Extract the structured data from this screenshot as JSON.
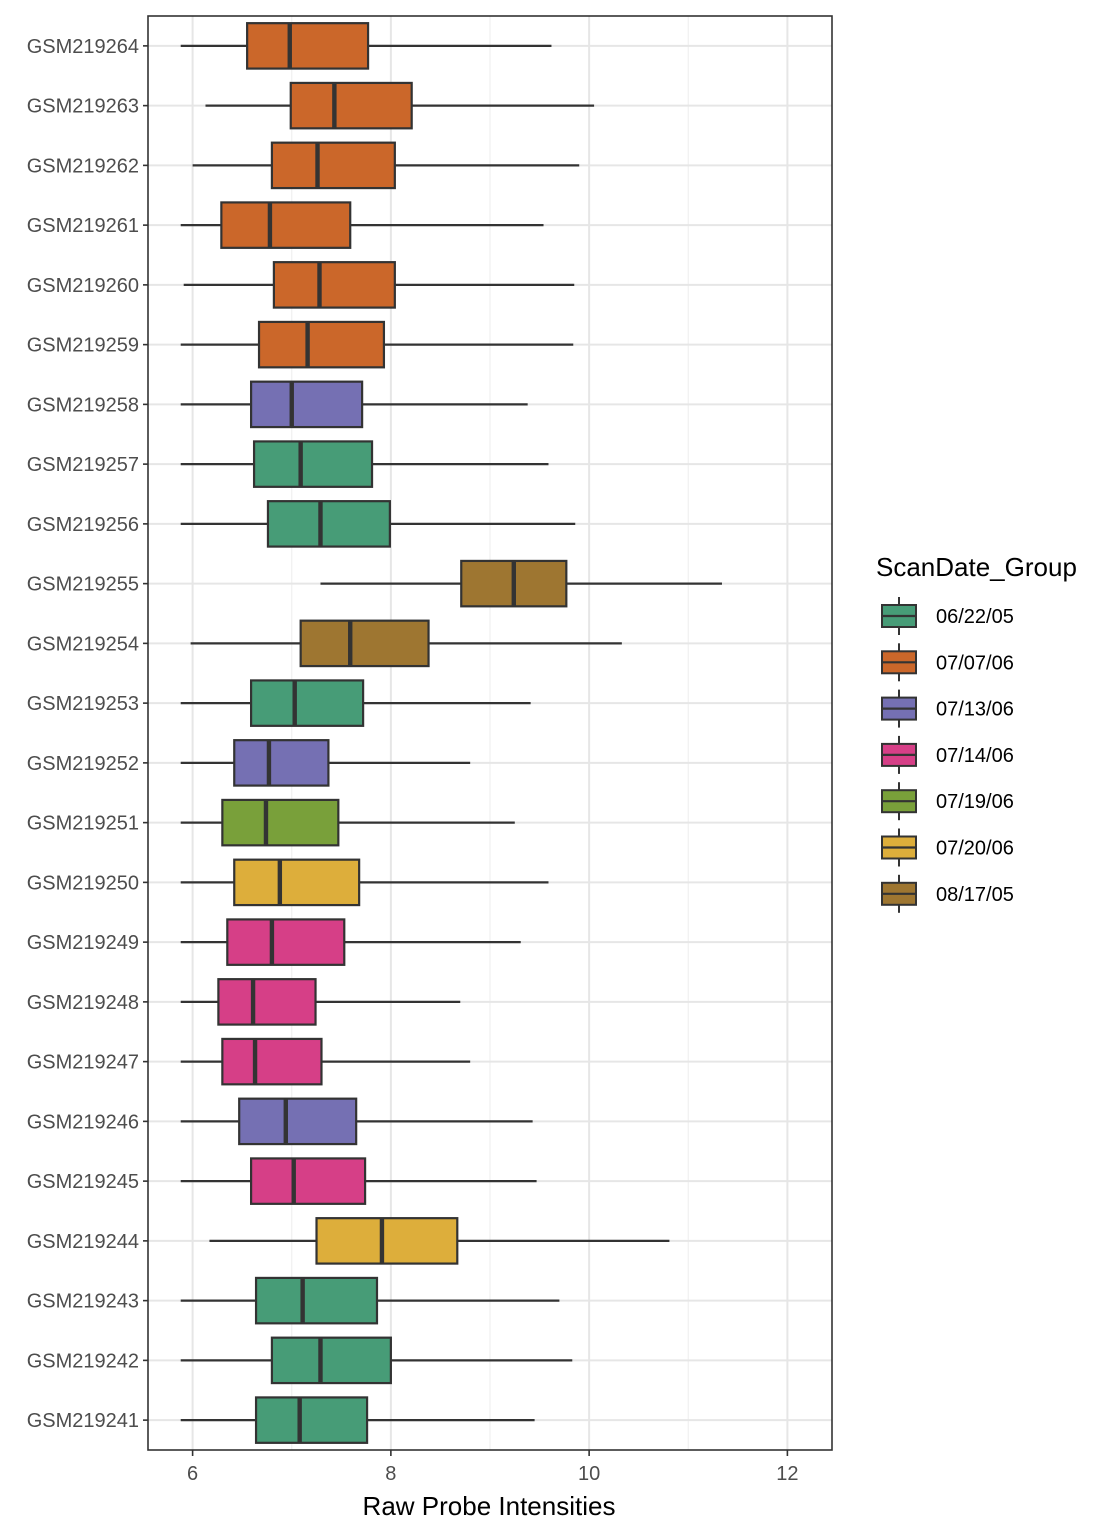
{
  "chart_data": {
    "type": "boxplot",
    "orientation": "horizontal",
    "xlabel": "Raw Probe Intensities",
    "ylabel": "",
    "xlim": [
      5.55,
      12.45
    ],
    "xticks": [
      6,
      8,
      10,
      12
    ],
    "grid": true,
    "legend": {
      "title": "ScanDate_Group",
      "position": "right",
      "entries": [
        {
          "label": "06/22/05",
          "color": "#479c77"
        },
        {
          "label": "07/07/06",
          "color": "#cb672a"
        },
        {
          "label": "07/13/06",
          "color": "#7570b3"
        },
        {
          "label": "07/14/06",
          "color": "#d63f87"
        },
        {
          "label": "07/19/06",
          "color": "#79a03a"
        },
        {
          "label": "07/20/06",
          "color": "#ddae3b"
        },
        {
          "label": "08/17/05",
          "color": "#9e7631"
        }
      ]
    },
    "samples": [
      {
        "label": "GSM219264",
        "group": "07/07/06",
        "wlo": 5.88,
        "q1": 6.55,
        "median": 6.98,
        "q3": 7.77,
        "whi": 9.62
      },
      {
        "label": "GSM219263",
        "group": "07/07/06",
        "wlo": 6.13,
        "q1": 6.99,
        "median": 7.43,
        "q3": 8.21,
        "whi": 10.05
      },
      {
        "label": "GSM219262",
        "group": "07/07/06",
        "wlo": 6.0,
        "q1": 6.8,
        "median": 7.26,
        "q3": 8.04,
        "whi": 9.9
      },
      {
        "label": "GSM219261",
        "group": "07/07/06",
        "wlo": 5.88,
        "q1": 6.29,
        "median": 6.78,
        "q3": 7.59,
        "whi": 9.54
      },
      {
        "label": "GSM219260",
        "group": "07/07/06",
        "wlo": 5.91,
        "q1": 6.82,
        "median": 7.28,
        "q3": 8.04,
        "whi": 9.85
      },
      {
        "label": "GSM219259",
        "group": "07/07/06",
        "wlo": 5.88,
        "q1": 6.67,
        "median": 7.16,
        "q3": 7.93,
        "whi": 9.84
      },
      {
        "label": "GSM219258",
        "group": "07/13/06",
        "wlo": 5.88,
        "q1": 6.59,
        "median": 7.0,
        "q3": 7.71,
        "whi": 9.38
      },
      {
        "label": "GSM219257",
        "group": "06/22/05",
        "wlo": 5.88,
        "q1": 6.62,
        "median": 7.09,
        "q3": 7.81,
        "whi": 9.59
      },
      {
        "label": "GSM219256",
        "group": "06/22/05",
        "wlo": 5.88,
        "q1": 6.76,
        "median": 7.29,
        "q3": 7.99,
        "whi": 9.86
      },
      {
        "label": "GSM219255",
        "group": "08/17/05",
        "wlo": 7.29,
        "q1": 8.71,
        "median": 9.24,
        "q3": 9.77,
        "whi": 11.34
      },
      {
        "label": "GSM219254",
        "group": "08/17/05",
        "wlo": 5.98,
        "q1": 7.09,
        "median": 7.59,
        "q3": 8.38,
        "whi": 10.33
      },
      {
        "label": "GSM219253",
        "group": "06/22/05",
        "wlo": 5.88,
        "q1": 6.59,
        "median": 7.03,
        "q3": 7.72,
        "whi": 9.41
      },
      {
        "label": "GSM219252",
        "group": "07/13/06",
        "wlo": 5.88,
        "q1": 6.42,
        "median": 6.77,
        "q3": 7.37,
        "whi": 8.8
      },
      {
        "label": "GSM219251",
        "group": "07/19/06",
        "wlo": 5.88,
        "q1": 6.3,
        "median": 6.74,
        "q3": 7.47,
        "whi": 9.25
      },
      {
        "label": "GSM219250",
        "group": "07/20/06",
        "wlo": 5.88,
        "q1": 6.42,
        "median": 6.88,
        "q3": 7.68,
        "whi": 9.59
      },
      {
        "label": "GSM219249",
        "group": "07/14/06",
        "wlo": 5.88,
        "q1": 6.35,
        "median": 6.8,
        "q3": 7.53,
        "whi": 9.31
      },
      {
        "label": "GSM219248",
        "group": "07/14/06",
        "wlo": 5.88,
        "q1": 6.26,
        "median": 6.61,
        "q3": 7.24,
        "whi": 8.7
      },
      {
        "label": "GSM219247",
        "group": "07/14/06",
        "wlo": 5.88,
        "q1": 6.3,
        "median": 6.63,
        "q3": 7.3,
        "whi": 8.8
      },
      {
        "label": "GSM219246",
        "group": "07/13/06",
        "wlo": 5.88,
        "q1": 6.47,
        "median": 6.94,
        "q3": 7.65,
        "whi": 9.43
      },
      {
        "label": "GSM219245",
        "group": "07/14/06",
        "wlo": 5.88,
        "q1": 6.59,
        "median": 7.02,
        "q3": 7.74,
        "whi": 9.47
      },
      {
        "label": "GSM219244",
        "group": "07/20/06",
        "wlo": 6.17,
        "q1": 7.25,
        "median": 7.91,
        "q3": 8.67,
        "whi": 10.81
      },
      {
        "label": "GSM219243",
        "group": "06/22/05",
        "wlo": 5.88,
        "q1": 6.64,
        "median": 7.11,
        "q3": 7.86,
        "whi": 9.7
      },
      {
        "label": "GSM219242",
        "group": "06/22/05",
        "wlo": 5.88,
        "q1": 6.8,
        "median": 7.29,
        "q3": 8.0,
        "whi": 9.83
      },
      {
        "label": "GSM219241",
        "group": "06/22/05",
        "wlo": 5.88,
        "q1": 6.64,
        "median": 7.08,
        "q3": 7.76,
        "whi": 9.45
      }
    ]
  }
}
